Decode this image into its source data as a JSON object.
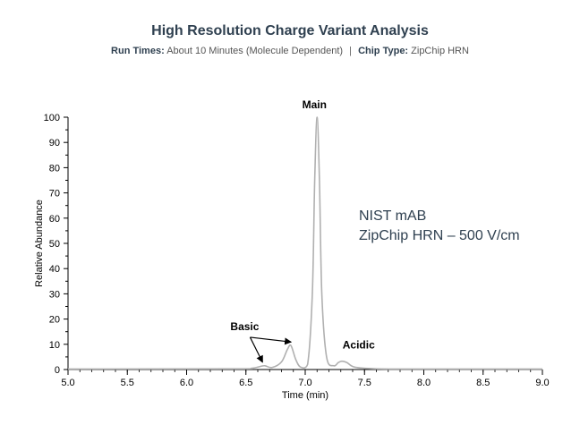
{
  "header": {
    "title": "High Resolution Charge Variant Analysis",
    "run_times_label": "Run Times:",
    "run_times_value": "About 10 Minutes (Molecule Dependent)",
    "separator": "|",
    "chip_type_label": "Chip Type:",
    "chip_type_value": "ZipChip HRN"
  },
  "chart_data": {
    "type": "line",
    "xlabel": "Time (min)",
    "ylabel": "Relative Abundance",
    "xlim": [
      5.0,
      9.0
    ],
    "ylim": [
      0,
      100
    ],
    "x_ticks": [
      "5.0",
      "5.5",
      "6.0",
      "6.5",
      "7.0",
      "7.5",
      "8.0",
      "8.5",
      "9.0"
    ],
    "y_ticks": [
      "0",
      "10",
      "20",
      "30",
      "40",
      "50",
      "60",
      "70",
      "80",
      "90",
      "100"
    ],
    "grid": false,
    "line_color": "#b0b0b0",
    "series": [
      {
        "x": [
          5.0,
          6.4,
          6.55,
          6.62,
          6.66,
          6.72,
          6.8,
          6.85,
          6.88,
          6.92,
          6.96,
          7.02,
          7.06,
          7.08,
          7.1,
          7.12,
          7.14,
          7.18,
          7.24,
          7.28,
          7.31,
          7.35,
          7.42,
          7.6,
          8.0,
          9.0
        ],
        "y": [
          0.2,
          0.3,
          0.5,
          1.2,
          1.5,
          0.8,
          3.0,
          8.0,
          9.5,
          4.0,
          1.0,
          2.0,
          30.0,
          75.0,
          100.0,
          75.0,
          30.0,
          5.0,
          1.5,
          2.8,
          3.3,
          2.8,
          0.9,
          0.3,
          0.2,
          0.2
        ]
      }
    ],
    "annotations": [
      {
        "text": "Main",
        "x": 7.1,
        "y": 100
      },
      {
        "text": "Acidic",
        "x": 7.3,
        "y": 3.3
      },
      {
        "text": "Basic",
        "targets": [
          [
            6.64,
            1.5
          ],
          [
            6.88,
            9.5
          ]
        ]
      }
    ],
    "inset_text": [
      "NIST mAB",
      "ZipChip HRN – 500 V/cm"
    ]
  }
}
